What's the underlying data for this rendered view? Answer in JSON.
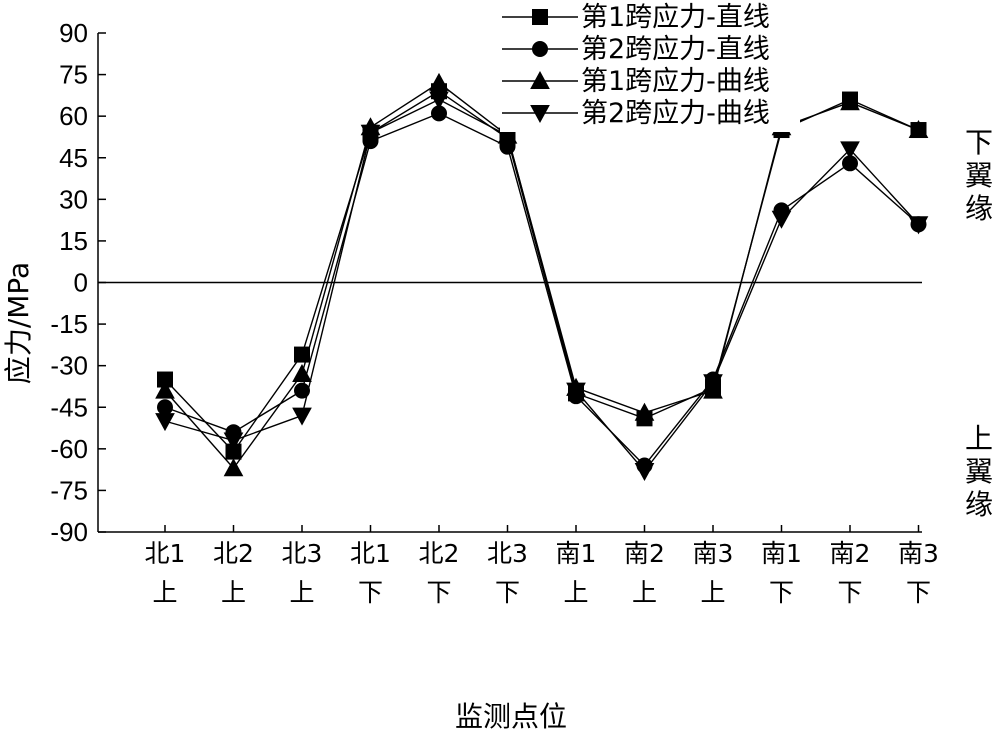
{
  "chart_data": {
    "type": "line",
    "xlabel": "监测点位",
    "ylabel": "应力/MPa",
    "ylim": [
      -90,
      90
    ],
    "yticks": [
      90,
      75,
      60,
      45,
      30,
      15,
      0,
      -15,
      -30,
      -45,
      -60,
      -75,
      -90
    ],
    "ytick_labels": [
      "90",
      "75",
      "60",
      "45",
      "30",
      "15",
      "0",
      "-15",
      "-30",
      "-45",
      "-60",
      "-75",
      "-90"
    ],
    "categories": [
      [
        "北1",
        "上"
      ],
      [
        "北2",
        "上"
      ],
      [
        "北3",
        "上"
      ],
      [
        "北1",
        "下"
      ],
      [
        "北2",
        "下"
      ],
      [
        "北3",
        "下"
      ],
      [
        "南1",
        "上"
      ],
      [
        "南2",
        "上"
      ],
      [
        "南3",
        "上"
      ],
      [
        "南1",
        "下"
      ],
      [
        "南2",
        "下"
      ],
      [
        "南3",
        "下"
      ]
    ],
    "series": [
      {
        "name": "第1跨应力-直线",
        "marker": "square",
        "values": [
          -35,
          -61,
          -26,
          54,
          69,
          52,
          -40,
          -49,
          -38,
          55,
          66,
          55
        ]
      },
      {
        "name": "第2跨应力-直线",
        "marker": "circle",
        "values": [
          -45,
          -54,
          -39,
          51,
          61,
          49,
          -41,
          -66,
          -35,
          26,
          43,
          21
        ]
      },
      {
        "name": "第1跨应力-曲线",
        "marker": "triangle-up",
        "values": [
          -39,
          -67,
          -33,
          56,
          72,
          53,
          -38,
          -47,
          -39,
          56,
          65,
          55
        ]
      },
      {
        "name": "第2跨应力-曲线",
        "marker": "triangle-down",
        "values": [
          -50,
          -57,
          -48,
          54,
          66,
          53,
          -39,
          -68,
          -36,
          23,
          48,
          21
        ]
      }
    ],
    "reference_line": 0,
    "grid": false,
    "legend_position": "top-right",
    "side_labels": {
      "upper": "下翼缘",
      "lower": "上翼缘"
    },
    "line_color": "#000000"
  }
}
